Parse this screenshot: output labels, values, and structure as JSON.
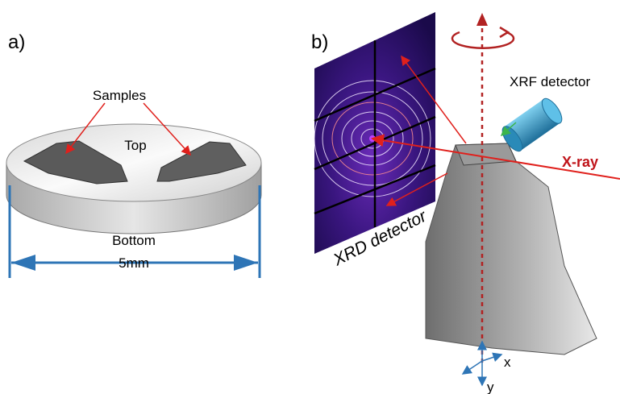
{
  "panel_a": {
    "label": "a)",
    "samples": "Samples",
    "top": "Top",
    "bottom": "Bottom",
    "dimension": "5mm"
  },
  "panel_b": {
    "label": "b)",
    "xrf_detector": "XRF detector",
    "xray": "X-ray",
    "xrd_detector": "XRD detector",
    "axis_x": "x",
    "axis_y": "y"
  }
}
